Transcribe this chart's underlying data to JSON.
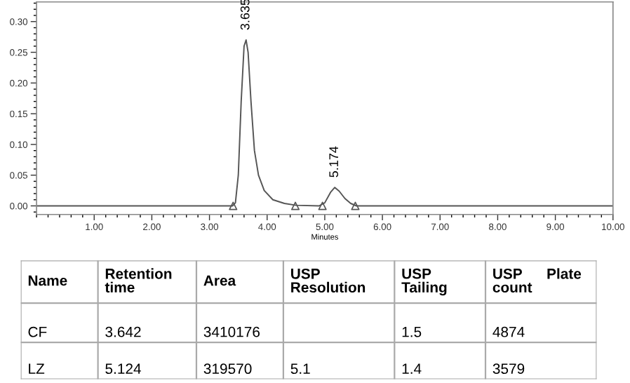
{
  "chart_data": [
    {
      "type": "line",
      "xlabel": "Minutes",
      "xlim": [
        0,
        10
      ],
      "ylim": [
        -0.014,
        0.332
      ],
      "xticks": [
        {
          "value": 1,
          "label": "1.00"
        },
        {
          "value": 2,
          "label": "2.00"
        },
        {
          "value": 3,
          "label": "3.00"
        },
        {
          "value": 4,
          "label": "4.00"
        },
        {
          "value": 5,
          "label": "5.00"
        },
        {
          "value": 6,
          "label": "6.00"
        },
        {
          "value": 7,
          "label": "7.00"
        },
        {
          "value": 8,
          "label": "8.00"
        },
        {
          "value": 9,
          "label": "9.00"
        },
        {
          "value": 10,
          "label": "10.00"
        }
      ],
      "yticks": [
        {
          "value": 0,
          "label": "0.00"
        },
        {
          "value": 0.05,
          "label": "0.05"
        },
        {
          "value": 0.1,
          "label": "0.10"
        },
        {
          "value": 0.15,
          "label": "0.15"
        },
        {
          "value": 0.2,
          "label": "0.20"
        },
        {
          "value": 0.25,
          "label": "0.25"
        },
        {
          "value": 0.3,
          "label": "0.30"
        }
      ],
      "grid": false,
      "legend": false,
      "series": [
        {
          "type": "line",
          "color": "#555555",
          "marker": "none",
          "x": [
            0,
            3.4,
            3.45,
            3.5,
            3.55,
            3.6,
            3.635,
            3.67,
            3.72,
            3.78,
            3.85,
            3.95,
            4.1,
            4.3,
            4.5,
            4.9,
            5.0,
            5.1,
            5.174,
            5.25,
            5.35,
            5.45,
            5.55,
            10
          ],
          "values": [
            0,
            0,
            0.005,
            0.05,
            0.17,
            0.26,
            0.27,
            0.25,
            0.17,
            0.09,
            0.05,
            0.025,
            0.01,
            0.004,
            0.001,
            0,
            0.005,
            0.022,
            0.03,
            0.024,
            0.012,
            0.004,
            0,
            0
          ]
        },
        {
          "type": "scatter",
          "color": "#555555",
          "marker": "triangle",
          "x": [
            3.41,
            4.49,
            4.96,
            5.53
          ],
          "values": [
            0,
            0,
            0,
            0
          ]
        }
      ],
      "annotations": [
        {
          "text": "3.635",
          "x": 3.635,
          "y": 0.27
        },
        {
          "text": "5.174",
          "x": 5.174,
          "y": 0.03
        }
      ]
    },
    {
      "type": "other",
      "annotations": [
        "Name",
        "Retention\ntime",
        "Area",
        "USP\nResolution",
        "USP\nTailing",
        "USP      Plate\ncount",
        "CF",
        "3.642",
        "3410176",
        null,
        "1.5",
        "4874",
        "LZ",
        "5.124",
        "319570",
        "5.1",
        "1.4",
        "3579"
      ]
    }
  ]
}
